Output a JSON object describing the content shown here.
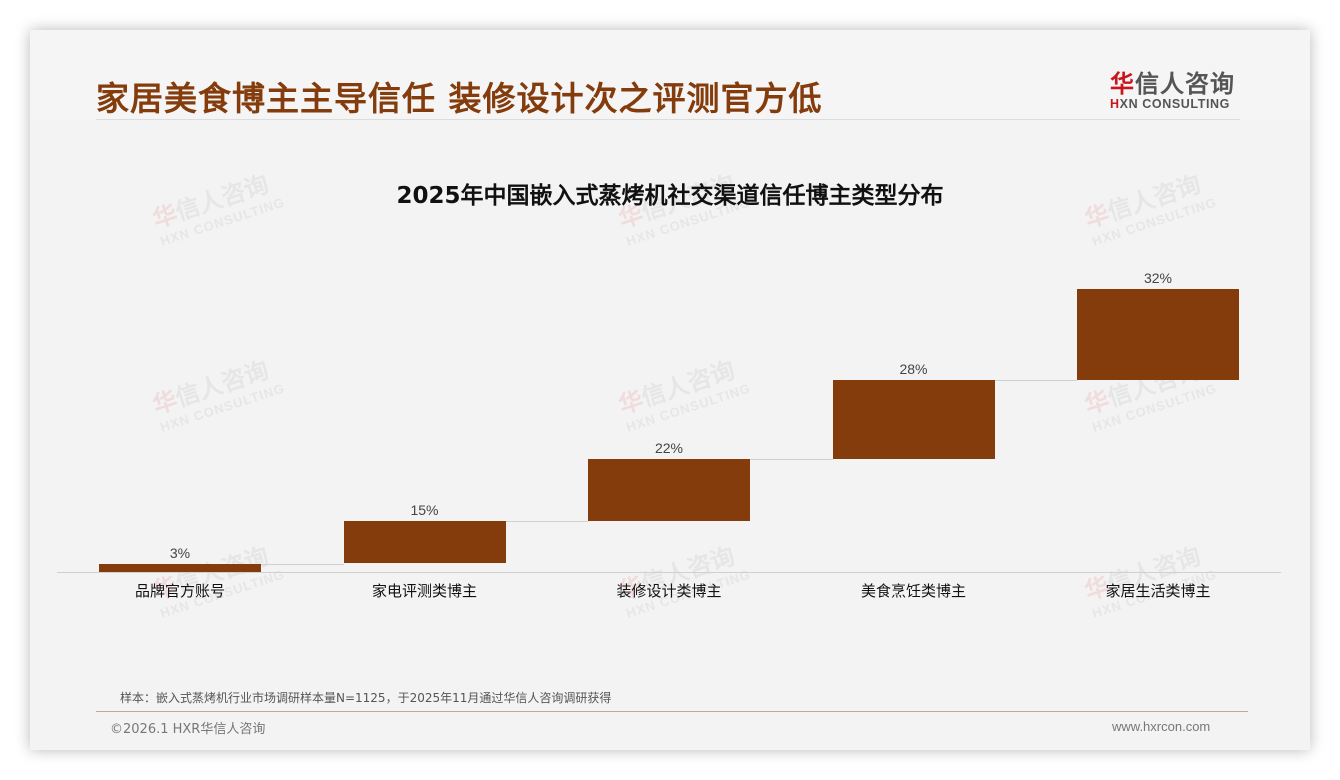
{
  "header": {
    "title": "家居美食博主主导信任 装修设计次之评测官方低",
    "logo_cn_first": "华",
    "logo_cn_rest": "信人咨询",
    "logo_en_first": "H",
    "logo_en_rest": "XN CONSULTING"
  },
  "watermark": {
    "cn_first": "华",
    "cn_rest": "信人咨询",
    "en": "HXN CONSULTING"
  },
  "colors": {
    "title": "#843c0c",
    "bar": "#843c0c",
    "logo_accent": "#c8161d"
  },
  "chart_data": {
    "type": "bar",
    "subtype": "waterfall",
    "title": "2025年中国嵌入式蒸烤机社交渠道信任博主类型分布",
    "categories": [
      "品牌官方账号",
      "家电评测类博主",
      "装修设计类博主",
      "美食烹饪类博主",
      "家居生活类博主"
    ],
    "values": [
      3,
      15,
      22,
      28,
      32
    ],
    "value_labels": [
      "3%",
      "15%",
      "22%",
      "28%",
      "32%"
    ],
    "unit": "%",
    "xlabel": "",
    "ylabel": "",
    "grid": false,
    "legend": "none"
  },
  "footer": {
    "note": "样本：嵌入式蒸烤机行业市场调研样本量N=1125，于2025年11月通过华信人咨询调研获得",
    "copyright": "©2026.1 HXR华信人咨询",
    "website": "www.hxrcon.com"
  }
}
